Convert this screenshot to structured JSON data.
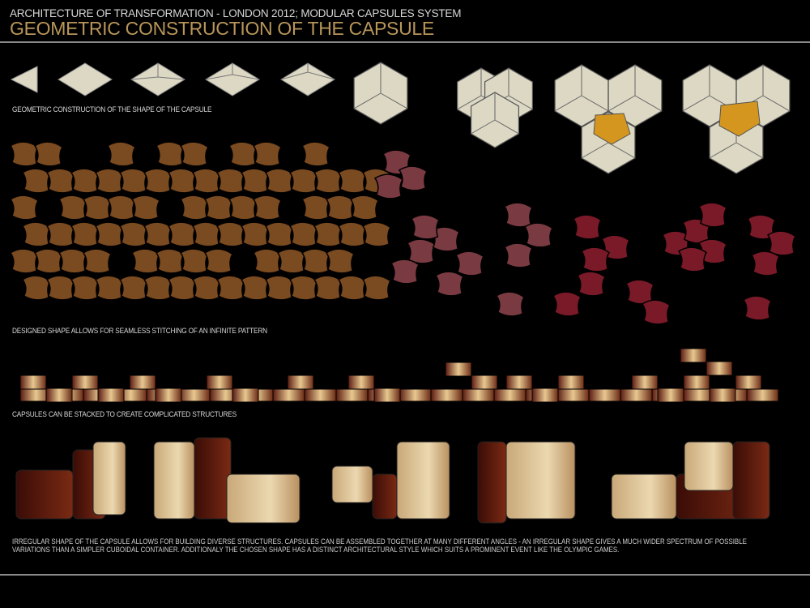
{
  "header": {
    "subtitle": "ARCHITECTURE OF TRANSFORMATION - LONDON 2012; MODULAR CAPSULES SYSTEM",
    "title": "GEOMETRIC CONSTRUCTION OF THE CAPSULE"
  },
  "sections": {
    "construction_caption": "GEOMETRIC CONSTRUCTION OF THE SHAPE OF THE CAPSULE",
    "pattern_caption": "DESIGNED SHAPE ALLOWS FOR SEAMLESS STITCHING OF AN INFINITE PATTERN",
    "stacking_caption": "CAPSULES CAN BE STACKED TO CREATE COMPLICATED STRUCTURES",
    "description": "IRREGULAR SHAPE OF THE CAPSULE ALLOWS FOR BUILDING DIVERSE STRUCTURES. CAPSULES CAN BE ASSEMBLED TOGETHER AT MANY DIFFERENT ANGLES - AN IRREGULAR SHAPE GIVES A MUCH WIDER SPECTRUM OF POSSIBLE VARIATIONS THAN A SIMPLER CUBOIDAL CONTAINER. ADDITIONALY THE CHOSEN SHAPE HAS A DISTINCT ARCHITECTURAL STYLE WHICH SUITS A PROMINENT EVENT LIKE THE OLYMPIC GAMES."
  },
  "colors": {
    "accent": "#b8965a",
    "cream": "#dcd8c4",
    "brown": "#7a4a20",
    "mauve": "#7a3a42",
    "crimson": "#7a1a28",
    "highlight": "#d4961e"
  }
}
